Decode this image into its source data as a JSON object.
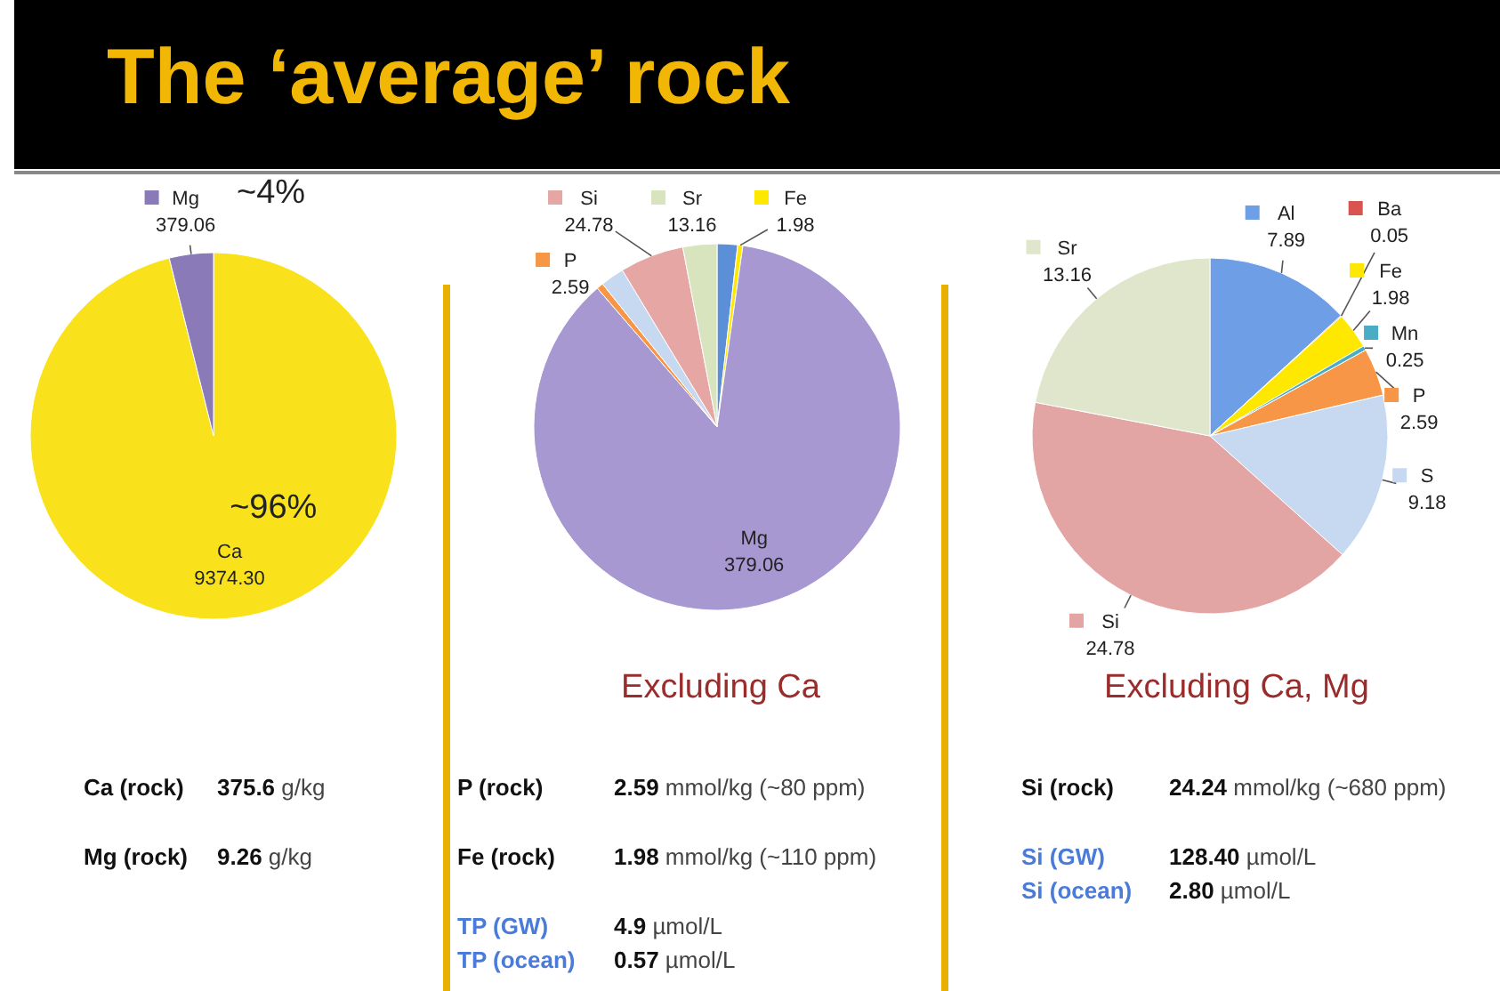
{
  "chart_data": [
    {
      "type": "pie",
      "title": "The ‘average’ rock",
      "categories": [
        "Ca",
        "Mg"
      ],
      "values": [
        9374.3,
        379.06
      ],
      "colors": [
        "#f9e21c",
        "#8a7ab8"
      ],
      "value_labels": [
        "9374.30",
        "379.06"
      ],
      "legend": "top",
      "annotations": [
        "~96%",
        "~4%"
      ]
    },
    {
      "type": "pie",
      "title": "Excluding Ca",
      "categories": [
        null,
        "Fe",
        "Mg",
        "P",
        null,
        "Si",
        "Sr"
      ],
      "values": [
        7.89,
        1.98,
        379.06,
        2.59,
        9.18,
        24.78,
        13.16
      ],
      "colors": [
        "#5b8fd8",
        "#ffe800",
        "#a898d2",
        "#f79646",
        "#c6d9f0",
        "#e6a6a4",
        "#d7e4bd"
      ],
      "value_labels": [
        null,
        "1.98",
        "379.06",
        "2.59",
        null,
        "24.78",
        "13.16"
      ],
      "legend": "top"
    },
    {
      "type": "pie",
      "title": "Excluding Ca, Mg",
      "categories": [
        "Al",
        "Ba",
        "Fe",
        "Mn",
        "P",
        "S",
        "Si",
        "Sr"
      ],
      "values": [
        7.89,
        0.05,
        1.98,
        0.25,
        2.59,
        9.18,
        24.78,
        13.16
      ],
      "colors": [
        "#6d9ee6",
        "#d9534f",
        "#ffe800",
        "#4bacc6",
        "#f79646",
        "#c6d9f0",
        "#e2a5a3",
        "#dfe6cc"
      ],
      "value_labels": [
        "7.89",
        "0.05",
        "1.98",
        "0.25",
        "2.59",
        "9.18",
        "24.78",
        "13.16"
      ],
      "legend": "right"
    },
    {
      "type": "other",
      "categories": [
        "Ca (rock)",
        "Mg (rock)"
      ],
      "value_labels": [
        "375.6 g/kg",
        "9.26 g/kg"
      ],
      "colors": [
        "#111111",
        "#111111"
      ]
    },
    {
      "type": "other",
      "categories": [
        "P (rock)",
        "Fe (rock)",
        "TP (GW)",
        "TP (ocean)"
      ],
      "value_labels": [
        "2.59 mmol/kg (~80 ppm)",
        "1.98 mmol/kg (~110 ppm)",
        "4.9 µmol/L",
        "0.57 µmol/L"
      ],
      "colors": [
        "#111111",
        "#111111",
        "#4a7bd8",
        "#4a7bd8"
      ]
    },
    {
      "type": "other",
      "categories": [
        "Si (rock)",
        "Si (GW)",
        "Si (ocean)"
      ],
      "value_labels": [
        "24.24 mmol/kg (~680 ppm)",
        "128.40 µmol/L",
        "2.80 µmol/L"
      ],
      "colors": [
        "#111111",
        "#4a7bd8",
        "#4a7bd8"
      ]
    }
  ]
}
